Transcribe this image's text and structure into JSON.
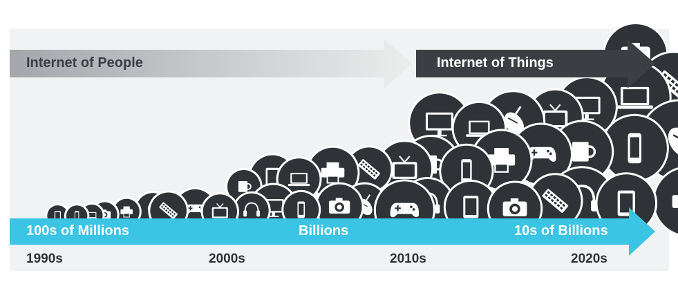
{
  "colors": {
    "people_arrow_dark": "#a3a7ab",
    "people_arrow_light": "#eceded",
    "things_arrow": "#3b3f44",
    "scale_arrow": "#3cc4e4",
    "bubble_fill": "#2f3337",
    "icon_face": "#ffffff",
    "panel": "#f1f2f3"
  },
  "arrows": {
    "people_label": "Internet of People",
    "things_label": "Internet of Things"
  },
  "scale": {
    "labels": [
      "100s of Millions",
      "Billions",
      "10s of Billions"
    ]
  },
  "timeline": {
    "decades": [
      "1990s",
      "2000s",
      "2010s",
      "2020s"
    ]
  },
  "device_icons": [
    "tablet",
    "phone",
    "laptop",
    "camera",
    "printer",
    "mouse",
    "keyboard",
    "gamepad",
    "tv",
    "headphones",
    "mug",
    "monitor"
  ]
}
